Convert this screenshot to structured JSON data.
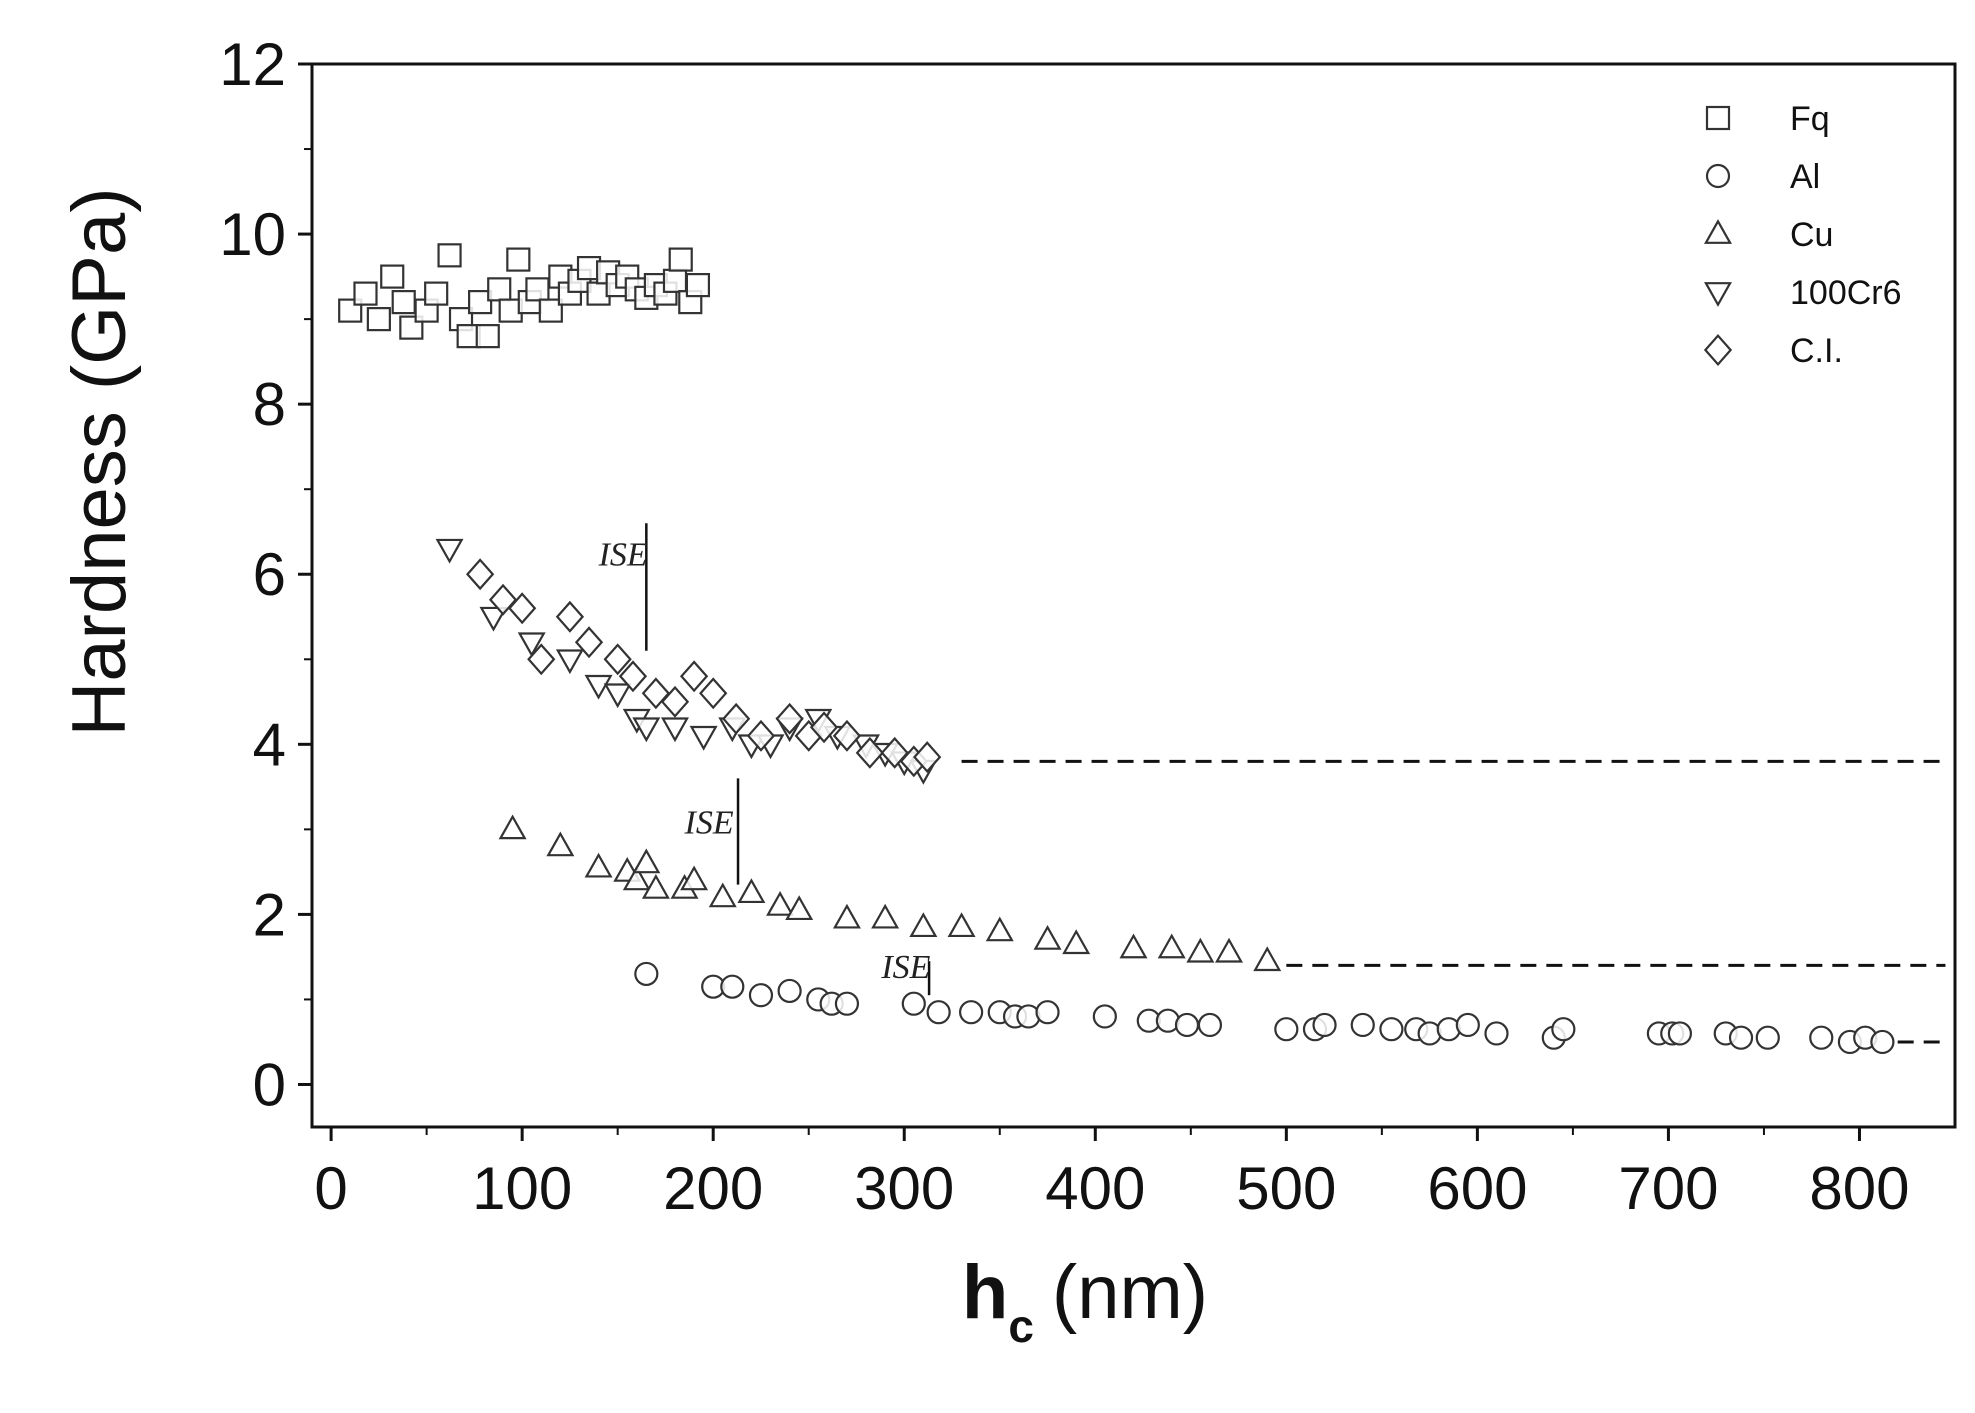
{
  "chart_data": {
    "type": "scatter",
    "title": "",
    "xlabel_main": "h",
    "xlabel_sub": "c",
    "xlabel_unit": "(nm)",
    "ylabel": "Hardness (GPa)",
    "xlim": [
      -10,
      850
    ],
    "ylim": [
      -0.5,
      12
    ],
    "xticks": [
      0,
      100,
      200,
      300,
      400,
      500,
      600,
      700,
      800
    ],
    "yticks": [
      0,
      2,
      4,
      6,
      8,
      10,
      12
    ],
    "legend_position": "top-right",
    "grid": false,
    "series": [
      {
        "name": "Fq",
        "marker": "square",
        "points": [
          [
            10,
            9.1
          ],
          [
            18,
            9.3
          ],
          [
            25,
            9.0
          ],
          [
            32,
            9.5
          ],
          [
            38,
            9.2
          ],
          [
            42,
            8.9
          ],
          [
            50,
            9.1
          ],
          [
            55,
            9.3
          ],
          [
            62,
            9.75
          ],
          [
            68,
            9.0
          ],
          [
            72,
            8.8
          ],
          [
            78,
            9.2
          ],
          [
            82,
            8.8
          ],
          [
            88,
            9.35
          ],
          [
            94,
            9.1
          ],
          [
            98,
            9.7
          ],
          [
            104,
            9.2
          ],
          [
            108,
            9.35
          ],
          [
            115,
            9.1
          ],
          [
            120,
            9.5
          ],
          [
            125,
            9.3
          ],
          [
            130,
            9.45
          ],
          [
            135,
            9.6
          ],
          [
            140,
            9.3
          ],
          [
            145,
            9.55
          ],
          [
            150,
            9.4
          ],
          [
            155,
            9.5
          ],
          [
            160,
            9.35
          ],
          [
            165,
            9.25
          ],
          [
            170,
            9.4
          ],
          [
            175,
            9.3
          ],
          [
            180,
            9.45
          ],
          [
            183,
            9.7
          ],
          [
            188,
            9.2
          ],
          [
            192,
            9.4
          ]
        ]
      },
      {
        "name": "Al",
        "marker": "circle",
        "points": [
          [
            165,
            1.3
          ],
          [
            200,
            1.15
          ],
          [
            210,
            1.15
          ],
          [
            225,
            1.05
          ],
          [
            240,
            1.1
          ],
          [
            255,
            1.0
          ],
          [
            262,
            0.95
          ],
          [
            270,
            0.95
          ],
          [
            305,
            0.95
          ],
          [
            318,
            0.85
          ],
          [
            335,
            0.85
          ],
          [
            350,
            0.85
          ],
          [
            358,
            0.8
          ],
          [
            365,
            0.8
          ],
          [
            375,
            0.85
          ],
          [
            405,
            0.8
          ],
          [
            428,
            0.75
          ],
          [
            438,
            0.75
          ],
          [
            448,
            0.7
          ],
          [
            460,
            0.7
          ],
          [
            500,
            0.65
          ],
          [
            515,
            0.65
          ],
          [
            520,
            0.7
          ],
          [
            540,
            0.7
          ],
          [
            555,
            0.65
          ],
          [
            568,
            0.65
          ],
          [
            575,
            0.6
          ],
          [
            585,
            0.65
          ],
          [
            595,
            0.7
          ],
          [
            610,
            0.6
          ],
          [
            640,
            0.55
          ],
          [
            645,
            0.65
          ],
          [
            695,
            0.6
          ],
          [
            702,
            0.6
          ],
          [
            706,
            0.6
          ],
          [
            730,
            0.6
          ],
          [
            738,
            0.55
          ],
          [
            752,
            0.55
          ],
          [
            780,
            0.55
          ],
          [
            795,
            0.5
          ],
          [
            803,
            0.55
          ],
          [
            812,
            0.5
          ]
        ]
      },
      {
        "name": "Cu",
        "marker": "triangle-up",
        "points": [
          [
            95,
            3.0
          ],
          [
            120,
            2.8
          ],
          [
            140,
            2.55
          ],
          [
            155,
            2.5
          ],
          [
            160,
            2.4
          ],
          [
            165,
            2.6
          ],
          [
            170,
            2.3
          ],
          [
            185,
            2.3
          ],
          [
            190,
            2.4
          ],
          [
            205,
            2.2
          ],
          [
            220,
            2.25
          ],
          [
            235,
            2.1
          ],
          [
            245,
            2.05
          ],
          [
            270,
            1.95
          ],
          [
            290,
            1.95
          ],
          [
            310,
            1.85
          ],
          [
            330,
            1.85
          ],
          [
            350,
            1.8
          ],
          [
            375,
            1.7
          ],
          [
            390,
            1.65
          ],
          [
            420,
            1.6
          ],
          [
            440,
            1.6
          ],
          [
            455,
            1.55
          ],
          [
            470,
            1.55
          ],
          [
            490,
            1.45
          ]
        ]
      },
      {
        "name": "100Cr6",
        "marker": "triangle-down",
        "points": [
          [
            62,
            6.3
          ],
          [
            85,
            5.5
          ],
          [
            105,
            5.2
          ],
          [
            125,
            5.0
          ],
          [
            140,
            4.7
          ],
          [
            150,
            4.6
          ],
          [
            160,
            4.3
          ],
          [
            165,
            4.2
          ],
          [
            180,
            4.2
          ],
          [
            195,
            4.1
          ],
          [
            210,
            4.2
          ],
          [
            220,
            4.0
          ],
          [
            230,
            4.0
          ],
          [
            240,
            4.2
          ],
          [
            255,
            4.3
          ],
          [
            265,
            4.1
          ],
          [
            280,
            4.0
          ],
          [
            290,
            3.9
          ],
          [
            300,
            3.8
          ],
          [
            310,
            3.7
          ]
        ]
      },
      {
        "name": "C.I.",
        "marker": "diamond",
        "points": [
          [
            78,
            6.0
          ],
          [
            90,
            5.7
          ],
          [
            100,
            5.6
          ],
          [
            110,
            5.0
          ],
          [
            125,
            5.5
          ],
          [
            135,
            5.2
          ],
          [
            150,
            5.0
          ],
          [
            158,
            4.8
          ],
          [
            170,
            4.6
          ],
          [
            180,
            4.5
          ],
          [
            190,
            4.8
          ],
          [
            200,
            4.6
          ],
          [
            212,
            4.3
          ],
          [
            225,
            4.1
          ],
          [
            240,
            4.3
          ],
          [
            250,
            4.1
          ],
          [
            258,
            4.2
          ],
          [
            270,
            4.1
          ],
          [
            282,
            3.9
          ],
          [
            295,
            3.9
          ],
          [
            305,
            3.8
          ],
          [
            312,
            3.85
          ]
        ]
      }
    ],
    "reference_lines": [
      {
        "y": 3.8,
        "x_from": 330,
        "x_to": 845,
        "style": "dashed"
      },
      {
        "y": 1.4,
        "x_from": 500,
        "x_to": 845,
        "style": "dashed"
      },
      {
        "y": 0.5,
        "x_from": 820,
        "x_to": 845,
        "style": "dashed"
      }
    ],
    "annotations": [
      {
        "text": "ISE",
        "x": 140,
        "y": 6.1,
        "line_x": 165,
        "line_from": 5.1,
        "line_to": 6.6
      },
      {
        "text": "ISE",
        "x": 185,
        "y": 2.95,
        "line_x": 213,
        "line_from": 2.35,
        "line_to": 3.6
      },
      {
        "text": "ISE",
        "x": 288,
        "y": 1.25,
        "line_x": 313,
        "line_from": 1.05,
        "line_to": 1.45
      }
    ]
  }
}
